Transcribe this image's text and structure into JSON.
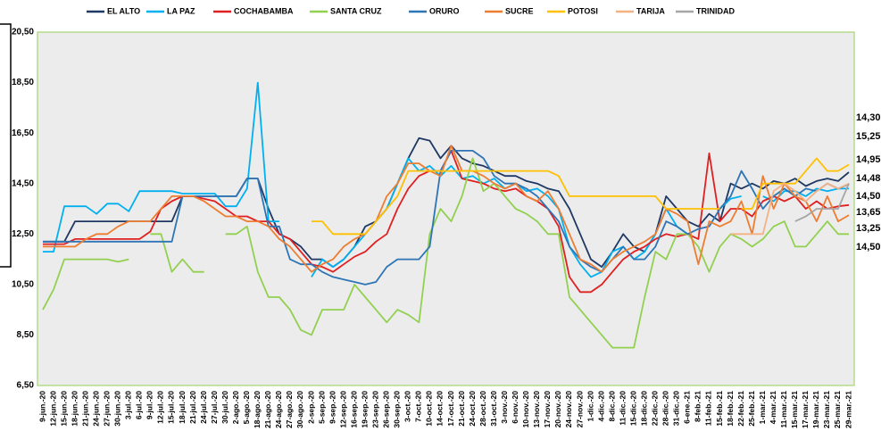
{
  "chart_data": {
    "type": "line",
    "categories": [
      "9-jun.-20",
      "12-jun.-20",
      "15-jun.-20",
      "18-jun.-20",
      "21-jun.-20",
      "24-jun.-20",
      "27-jun.-20",
      "30-jun.-20",
      "3-jul.-20",
      "6-jul.-20",
      "9-jul.-20",
      "12-jul.-20",
      "15-jul.-20",
      "18-jul.-20",
      "21-jul.-20",
      "24-jul.-20",
      "27-jul.-20",
      "30-jul.-20",
      "2-ago.-20",
      "5-ago.-20",
      "18-ago.-20",
      "21-ago.-20",
      "24-ago.-20",
      "27-ago.-20",
      "30-ago.-20",
      "2-sep.-20",
      "5-sep.-20",
      "9-sep.-20",
      "12-sep.-20",
      "16-sep.-20",
      "19-sep.-20",
      "23-sep.-20",
      "26-sep.-20",
      "30-sep.-20",
      "3-oct.-20",
      "7-oct.-20",
      "10-oct.-20",
      "14-oct.-20",
      "17-oct.-20",
      "21-oct.-20",
      "24-oct.-20",
      "28-oct.-20",
      "31-oct.-20",
      "3-nov.-20",
      "6-nov.-20",
      "10-nov.-20",
      "13-nov.-20",
      "17-nov.-20",
      "20-nov.-20",
      "24-nov.-20",
      "27-nov.-20",
      "1-dic.-20",
      "4-dic.-20",
      "8-dic.-20",
      "11-dic.-20",
      "15-dic.-20",
      "18-dic.-20",
      "22-dic.-20",
      "28-dic.-20",
      "31-dic.-20",
      "6-ene.-21",
      "8-feb.-21",
      "11-feb.-21",
      "15-feb.-21",
      "18-feb.-21",
      "22-feb.-21",
      "25-feb.-21",
      "1-mar.-21",
      "4-mar.-21",
      "11-mar.-21",
      "15-mar.-21",
      "17-mar.-21",
      "19-mar.-21",
      "23-mar.-21",
      "25-mar.-21",
      "29-mar.-21"
    ],
    "series": [
      {
        "name": "EL ALTO",
        "color": "#1f3864",
        "last_label": "14,95",
        "values": [
          12.2,
          12.2,
          12.2,
          13,
          13,
          13,
          13,
          13,
          13,
          13,
          13,
          13,
          13,
          14,
          14,
          14,
          14,
          14,
          14,
          14.7,
          14.7,
          13.5,
          12.5,
          12.3,
          12,
          11.5,
          11.5,
          11.2,
          11.5,
          12,
          12.8,
          13,
          13.5,
          14.5,
          15.5,
          16.3,
          16.2,
          15.5,
          16,
          15.5,
          15.3,
          15.2,
          15,
          14.8,
          14.8,
          14.6,
          14.5,
          14.3,
          14.2,
          13.5,
          12.5,
          11.5,
          11.2,
          11.8,
          12.5,
          12,
          11.8,
          12.5,
          14,
          13.5,
          13,
          12.8,
          13.3,
          13,
          14.5,
          14.3,
          14.5,
          14.3,
          14.6,
          14.5,
          14.7,
          14.4,
          14.6,
          14.7,
          14.6,
          14.95
        ]
      },
      {
        "name": "LA PAZ",
        "color": "#00b0f0",
        "last_label": "14,30",
        "values": [
          11.8,
          11.8,
          13.6,
          13.6,
          13.6,
          13.3,
          13.7,
          13.7,
          13.4,
          14.2,
          14.2,
          14.2,
          14.2,
          14.1,
          14.1,
          14.1,
          14.1,
          13.6,
          13.6,
          14.3,
          18.5,
          13,
          13,
          null,
          null,
          10.8,
          11.5,
          11.2,
          11.5,
          12,
          12.5,
          13,
          13.5,
          14.5,
          15.5,
          15,
          15.2,
          14.8,
          15.2,
          14.7,
          14.8,
          14.5,
          14.7,
          14.3,
          14.5,
          14.2,
          14.3,
          14,
          13.5,
          12,
          11.3,
          10.8,
          11,
          11.8,
          12,
          11.5,
          11.8,
          12.5,
          13.5,
          12.8,
          12.5,
          null,
          null,
          13.5,
          13.9,
          14,
          null,
          14,
          13.8,
          14.2,
          14.2,
          14,
          14.3,
          14.2,
          14.3,
          14.3
        ]
      },
      {
        "name": "COCHABAMBA",
        "color": "#e02020",
        "last_label": "13,65",
        "values": [
          12.1,
          12.1,
          12.1,
          12.3,
          12.3,
          12.3,
          12.3,
          12.3,
          12.3,
          12.3,
          12.6,
          13.5,
          13.8,
          14,
          14,
          13.9,
          13.8,
          13.5,
          13.2,
          13.2,
          13,
          13,
          12.5,
          12.3,
          11.8,
          11.3,
          11.2,
          11,
          11.3,
          11.6,
          11.8,
          12.2,
          12.5,
          13.5,
          14.3,
          14.8,
          15,
          15,
          15.8,
          14.7,
          14.6,
          14.5,
          14.3,
          14.2,
          14.3,
          14,
          13.8,
          13.5,
          12.8,
          10.8,
          10.2,
          10.2,
          10.5,
          11,
          11.5,
          11.8,
          12,
          12.3,
          12.5,
          12.4,
          12.5,
          12.3,
          15.7,
          13,
          13.5,
          13.5,
          13.2,
          13.8,
          14,
          13.8,
          14,
          13.5,
          13.8,
          13.5,
          13.6,
          13.65
        ]
      },
      {
        "name": "SANTA CRUZ",
        "color": "#92d050",
        "values": [
          9.5,
          10.3,
          11.5,
          11.5,
          11.5,
          11.5,
          11.5,
          11.4,
          11.5,
          null,
          12.5,
          12.5,
          11,
          11.5,
          11,
          11,
          null,
          12.5,
          12.5,
          12.8,
          11,
          10,
          10,
          9.5,
          8.7,
          8.5,
          9.5,
          9.5,
          9.5,
          10.5,
          10,
          9.5,
          9,
          9.5,
          9.3,
          9,
          12.5,
          13.5,
          13,
          14,
          15.5,
          14.2,
          14.5,
          14,
          13.5,
          13.3,
          13,
          12.5,
          12.5,
          10,
          9.5,
          9,
          8.5,
          8,
          8,
          8,
          10,
          11.8,
          11.5,
          12.5,
          12.5,
          12,
          11,
          12,
          12.5,
          12.3,
          12,
          12.3,
          12.8,
          13,
          12,
          12,
          12.5,
          13,
          12.5,
          12.5
        ]
      },
      {
        "name": "ORURO",
        "color": "#2e75b6",
        "last_label": "14,48",
        "values": [
          12.2,
          12.2,
          12.2,
          12.2,
          12.2,
          12.2,
          12.2,
          12.2,
          12.2,
          12.2,
          12.2,
          12.2,
          12.2,
          14,
          14,
          14,
          14,
          14,
          14,
          14.7,
          14.7,
          12.8,
          12.8,
          11.5,
          11.3,
          11.3,
          11,
          10.8,
          10.7,
          10.6,
          10.5,
          10.6,
          11.2,
          11.5,
          11.5,
          11.5,
          12,
          15,
          15.8,
          15.8,
          15.8,
          15.5,
          14.8,
          14.5,
          14.5,
          14.3,
          14,
          13.5,
          13,
          12,
          11.5,
          11.2,
          11,
          11.5,
          12,
          11.5,
          11.5,
          12,
          13,
          12.8,
          12.5,
          12.7,
          12.8,
          13.5,
          14,
          15,
          14.3,
          13.5,
          14,
          14.3,
          14,
          14.3,
          14.2,
          14.5,
          14.3,
          14.48
        ]
      },
      {
        "name": "SUCRE",
        "color": "#ed7d31",
        "last_label": "13,25",
        "values": [
          12,
          12,
          12,
          12,
          12.3,
          12.5,
          12.5,
          12.8,
          13,
          13,
          13,
          13.5,
          14,
          14,
          14,
          13.8,
          13.5,
          13.2,
          13.2,
          13,
          13,
          12.8,
          12.3,
          12,
          11.5,
          11,
          11.3,
          11.5,
          12,
          12.3,
          12.5,
          13,
          14,
          14.5,
          15.3,
          15.3,
          15,
          14.8,
          16,
          15,
          15,
          14.8,
          14.5,
          14.3,
          14.5,
          14,
          13.8,
          14.2,
          13.5,
          12.5,
          11.5,
          11.3,
          11,
          11.5,
          11.8,
          12,
          12.2,
          12.5,
          13.5,
          13.3,
          13,
          11.3,
          13,
          12.8,
          13,
          13.8,
          12.5,
          14.8,
          13.5,
          14.5,
          14,
          13.8,
          13,
          14,
          13,
          13.25
        ]
      },
      {
        "name": "POTOSI",
        "color": "#ffc000",
        "last_label": "15,25",
        "values": [
          null,
          null,
          null,
          null,
          null,
          null,
          null,
          null,
          null,
          null,
          null,
          null,
          null,
          null,
          null,
          null,
          null,
          null,
          null,
          null,
          null,
          null,
          null,
          null,
          null,
          13,
          13,
          12.5,
          12.5,
          12.5,
          12.5,
          13,
          13.5,
          14,
          15,
          15,
          15,
          15,
          15,
          15,
          15,
          15,
          15,
          15,
          15,
          15,
          15,
          15,
          14.8,
          14,
          14,
          14,
          14,
          14,
          14,
          14,
          14,
          14,
          13.5,
          13.5,
          13.5,
          13.5,
          13.5,
          13.5,
          null,
          13.5,
          13.5,
          14.5,
          14.5,
          14.5,
          14.5,
          15,
          15.5,
          15,
          15,
          15.25
        ]
      },
      {
        "name": "TARIJA",
        "color": "#f4b183",
        "last_label": "14,50",
        "values": [
          null,
          null,
          null,
          null,
          null,
          null,
          null,
          null,
          null,
          null,
          null,
          null,
          null,
          null,
          null,
          null,
          null,
          null,
          null,
          null,
          null,
          null,
          null,
          null,
          null,
          null,
          null,
          null,
          null,
          null,
          null,
          null,
          null,
          null,
          null,
          null,
          null,
          null,
          null,
          null,
          null,
          null,
          null,
          null,
          null,
          null,
          null,
          null,
          null,
          null,
          null,
          null,
          null,
          null,
          null,
          null,
          null,
          null,
          null,
          null,
          null,
          null,
          null,
          null,
          12.5,
          12.5,
          12.5,
          12.5,
          14.2,
          14.5,
          14.2,
          13.8,
          14.2,
          14.5,
          14.3,
          14.5
        ]
      },
      {
        "name": "TRINIDAD",
        "color": "#a6a6a6",
        "last_label": "14,50",
        "values": [
          null,
          null,
          null,
          null,
          null,
          null,
          null,
          null,
          null,
          null,
          null,
          null,
          null,
          null,
          null,
          null,
          null,
          null,
          null,
          null,
          null,
          null,
          null,
          null,
          null,
          null,
          null,
          null,
          null,
          null,
          null,
          null,
          null,
          null,
          null,
          null,
          null,
          null,
          null,
          null,
          null,
          null,
          null,
          null,
          null,
          null,
          null,
          null,
          null,
          null,
          null,
          null,
          null,
          null,
          null,
          null,
          null,
          null,
          null,
          null,
          null,
          null,
          null,
          null,
          null,
          null,
          null,
          null,
          null,
          null,
          13,
          13.2,
          13.5,
          13.5,
          13.5,
          14.5
        ]
      }
    ],
    "ylim": [
      6.5,
      20.5
    ],
    "yticks": [
      {
        "value": 6.5,
        "label": "6,50"
      },
      {
        "value": 8.5,
        "label": "8,50"
      },
      {
        "value": 10.5,
        "label": "10,50"
      },
      {
        "value": 12.5,
        "label": "12,50"
      },
      {
        "value": 14.5,
        "label": "14,50"
      },
      {
        "value": 16.5,
        "label": "16,50"
      },
      {
        "value": 18.5,
        "label": "18,50"
      },
      {
        "value": 20.5,
        "label": "20,50"
      }
    ],
    "grid": false,
    "legend": "top"
  }
}
